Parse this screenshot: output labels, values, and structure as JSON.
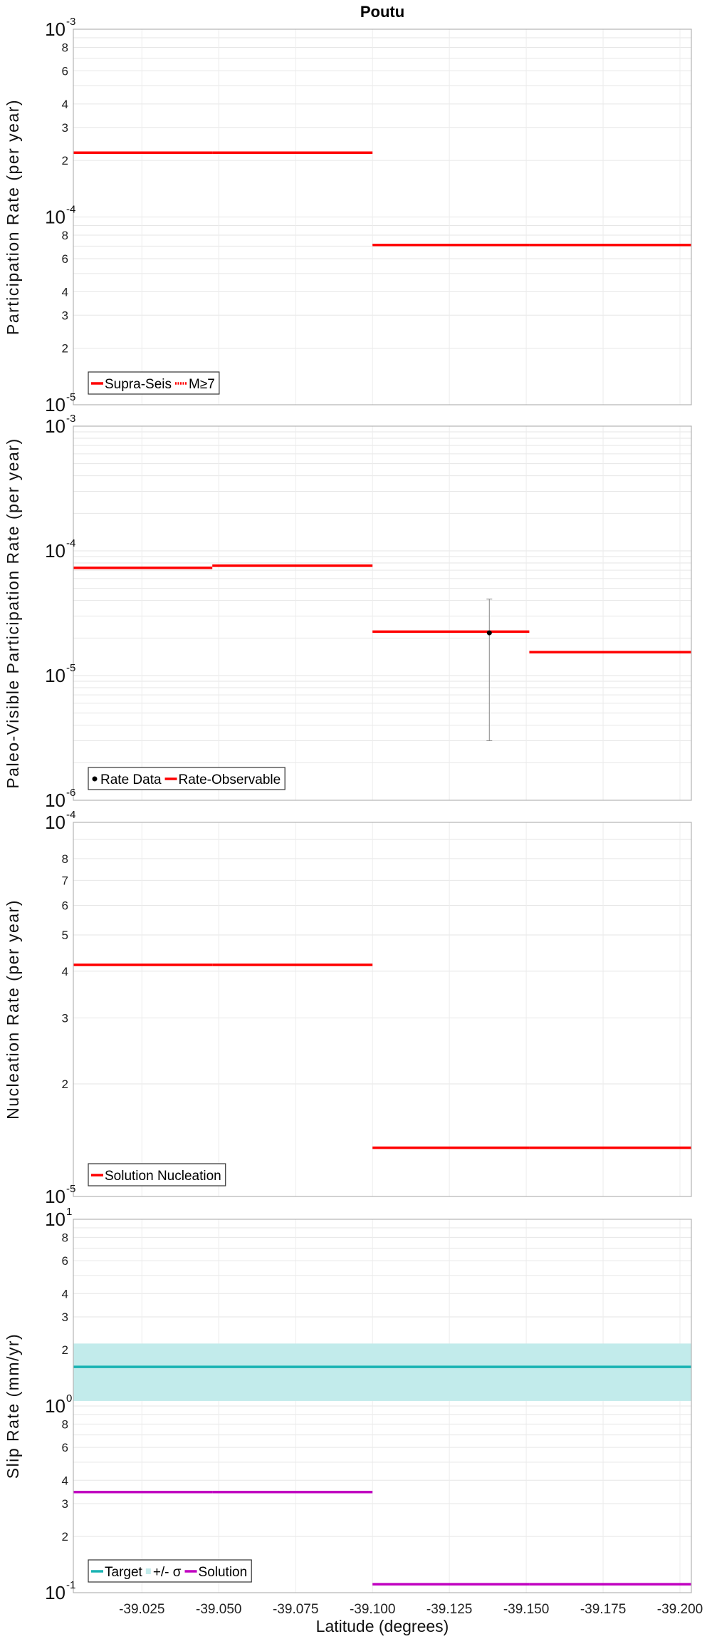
{
  "title": "Poutu",
  "x_axis": {
    "label": "Latitude (degrees)",
    "xlim": [
      -39.0027,
      -39.2037
    ],
    "ticks": [
      -39.025,
      -39.05,
      -39.075,
      -39.1,
      -39.125,
      -39.15,
      -39.175,
      -39.2
    ],
    "tick_labels": [
      "-39.025",
      "-39.050",
      "-39.075",
      "-39.100",
      "-39.125",
      "-39.150",
      "-39.175",
      "-39.200"
    ]
  },
  "chart_data": [
    {
      "type": "line",
      "ylabel": "Participation Rate (per year)",
      "yscale": "log",
      "ylim": [
        1e-05,
        0.001
      ],
      "major_labels": [
        {
          "base": "10",
          "exp": "-5"
        },
        {
          "base": "10",
          "exp": "-4"
        },
        {
          "base": "10",
          "exp": "-3"
        }
      ],
      "minor_labels": [
        "2",
        "3",
        "4",
        "6",
        "8"
      ],
      "grid": true,
      "legend": {
        "placement": "bottom-left",
        "entries": [
          {
            "label": "Supra-Seis",
            "style": "solid",
            "color": "#ff0000"
          },
          {
            "label": "M≥7",
            "style": "dotted",
            "color": "#ff0000"
          }
        ]
      },
      "series": [
        {
          "name": "Supra-Seis",
          "color": "#ff0000",
          "segments": [
            {
              "x": [
                -39.0027,
                -39.0479
              ],
              "y": 0.00022
            },
            {
              "x": [
                -39.0479,
                -39.1
              ],
              "y": 0.00022
            },
            {
              "x": [
                -39.1,
                -39.151
              ],
              "y": 7.1e-05
            },
            {
              "x": [
                -39.151,
                -39.2037
              ],
              "y": 7.1e-05
            }
          ]
        }
      ]
    },
    {
      "type": "line",
      "ylabel": "Paleo-Visible Participation Rate (per year)",
      "yscale": "log",
      "ylim": [
        1e-06,
        0.001
      ],
      "major_labels": [
        {
          "base": "10",
          "exp": "-6"
        },
        {
          "base": "10",
          "exp": "-5"
        },
        {
          "base": "10",
          "exp": "-4"
        },
        {
          "base": "10",
          "exp": "-3"
        }
      ],
      "minor_labels": [],
      "grid": true,
      "legend": {
        "placement": "bottom-left",
        "entries": [
          {
            "label": "Rate Data",
            "style": "dot",
            "color": "#000000"
          },
          {
            "label": "Rate-Observable",
            "style": "solid",
            "color": "#ff0000"
          }
        ]
      },
      "series": [
        {
          "name": "Rate-Observable",
          "color": "#ff0000",
          "segments": [
            {
              "x": [
                -39.0027,
                -39.0479
              ],
              "y": 7.3e-05
            },
            {
              "x": [
                -39.0479,
                -39.1
              ],
              "y": 7.6e-05
            },
            {
              "x": [
                -39.1,
                -39.151
              ],
              "y": 2.25e-05
            },
            {
              "x": [
                -39.151,
                -39.2037
              ],
              "y": 1.54e-05
            }
          ]
        }
      ],
      "points": [
        {
          "name": "Rate Data",
          "x": -39.138,
          "y": 2.2e-05,
          "err_low": 3e-06,
          "err_high": 4.1e-05,
          "color": "#000000"
        }
      ]
    },
    {
      "type": "line",
      "ylabel": "Nucleation Rate (per year)",
      "yscale": "log",
      "ylim": [
        1e-05,
        0.0001
      ],
      "major_labels": [
        {
          "base": "10",
          "exp": "-5"
        },
        {
          "base": "10",
          "exp": "-4"
        }
      ],
      "minor_labels": [
        "2",
        "3",
        "4",
        "5",
        "6",
        "7",
        "8"
      ],
      "grid": true,
      "legend": {
        "placement": "bottom-left",
        "entries": [
          {
            "label": "Solution Nucleation",
            "style": "solid",
            "color": "#ff0000"
          }
        ]
      },
      "series": [
        {
          "name": "Solution Nucleation",
          "color": "#ff0000",
          "segments": [
            {
              "x": [
                -39.0027,
                -39.0479
              ],
              "y": 4.16e-05
            },
            {
              "x": [
                -39.0479,
                -39.1
              ],
              "y": 4.16e-05
            },
            {
              "x": [
                -39.1,
                -39.151
              ],
              "y": 1.35e-05
            },
            {
              "x": [
                -39.151,
                -39.2037
              ],
              "y": 1.35e-05
            }
          ]
        }
      ]
    },
    {
      "type": "line",
      "ylabel": "Slip Rate (mm/yr)",
      "yscale": "log",
      "ylim": [
        0.1,
        10
      ],
      "major_labels": [
        {
          "base": "10",
          "exp": "-1"
        },
        {
          "base": "10",
          "exp": "0"
        },
        {
          "base": "10",
          "exp": "1"
        }
      ],
      "minor_labels": [
        "2",
        "3",
        "4",
        "6",
        "8"
      ],
      "grid": true,
      "legend": {
        "placement": "bottom-left",
        "entries": [
          {
            "label": "Target",
            "style": "solid",
            "color": "#19b3b3"
          },
          {
            "label": "+/- σ",
            "style": "band",
            "color": "#c2ebeb"
          },
          {
            "label": "Solution",
            "style": "solid",
            "color": "#c000c0"
          }
        ]
      },
      "bands": [
        {
          "name": "+/- σ",
          "color": "#c2ebeb",
          "x": [
            -39.0027,
            -39.2037
          ],
          "y_low": 1.064,
          "y_high": 2.16
        }
      ],
      "series": [
        {
          "name": "Target",
          "color": "#19b3b3",
          "segments": [
            {
              "x": [
                -39.0027,
                -39.2037
              ],
              "y": 1.62
            }
          ]
        },
        {
          "name": "Solution",
          "color": "#c000c0",
          "segments": [
            {
              "x": [
                -39.0027,
                -39.0479
              ],
              "y": 0.346
            },
            {
              "x": [
                -39.0479,
                -39.1
              ],
              "y": 0.346
            },
            {
              "x": [
                -39.1,
                -39.151
              ],
              "y": 0.111
            },
            {
              "x": [
                -39.151,
                -39.2037
              ],
              "y": 0.111
            }
          ]
        }
      ]
    }
  ]
}
